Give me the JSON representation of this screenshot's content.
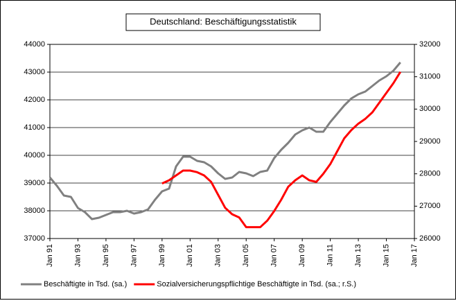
{
  "chart_data": {
    "type": "line",
    "title": "Deutschland: Beschäftigungsstatistik",
    "x": [
      1991,
      1991.5,
      1992,
      1992.5,
      1993,
      1993.5,
      1994,
      1994.5,
      1995,
      1995.5,
      1996,
      1996.5,
      1997,
      1997.5,
      1998,
      1998.5,
      1999,
      1999.5,
      2000,
      2000.5,
      2001,
      2001.5,
      2002,
      2002.5,
      2003,
      2003.5,
      2004,
      2004.5,
      2005,
      2005.5,
      2006,
      2006.5,
      2007,
      2007.5,
      2008,
      2008.5,
      2009,
      2009.5,
      2010,
      2010.5,
      2011,
      2011.5,
      2012,
      2012.5,
      2013,
      2013.5,
      2014,
      2014.5,
      2015,
      2015.5,
      2016
    ],
    "series": [
      {
        "name": "Beschäftigte in Tsd. (sa.)",
        "color": "#808080",
        "values": [
          39200,
          38900,
          38550,
          38500,
          38100,
          37950,
          37700,
          37750,
          37850,
          37950,
          37950,
          38000,
          37900,
          37950,
          38050,
          38400,
          38700,
          38800,
          39600,
          39950,
          39950,
          39800,
          39750,
          39600,
          39350,
          39150,
          39200,
          39400,
          39350,
          39250,
          39400,
          39450,
          39900,
          40200,
          40450,
          40750,
          40900,
          41000,
          40850,
          40850,
          41200,
          41500,
          41800,
          42050,
          42200,
          42300,
          42500,
          42700,
          42850,
          43050,
          43350
        ]
      },
      {
        "name": "Sozialversicherungspflichtige Beschäftigte in Tsd. (sa.; r.S.)",
        "color": "#ff0000",
        "axis": "y2",
        "values": [
          null,
          null,
          null,
          null,
          null,
          null,
          null,
          null,
          null,
          null,
          null,
          null,
          null,
          null,
          null,
          null,
          27700,
          27800,
          27950,
          28100,
          28100,
          28050,
          27950,
          27750,
          27350,
          26950,
          26750,
          26650,
          26350,
          26350,
          26350,
          26550,
          26850,
          27200,
          27600,
          27800,
          27950,
          27800,
          27750,
          28000,
          28300,
          28700,
          29100,
          29350,
          29550,
          29700,
          29900,
          30200,
          30500,
          30800,
          31150
        ]
      }
    ],
    "xlim": [
      1991,
      2017
    ],
    "xticks": [
      {
        "value": 1991,
        "label": "Jan 91"
      },
      {
        "value": 1993,
        "label": "Jan 93"
      },
      {
        "value": 1995,
        "label": "Jan 95"
      },
      {
        "value": 1997,
        "label": "Jan 97"
      },
      {
        "value": 1999,
        "label": "Jan 99"
      },
      {
        "value": 2001,
        "label": "Jan 01"
      },
      {
        "value": 2003,
        "label": "Jan 03"
      },
      {
        "value": 2005,
        "label": "Jan 05"
      },
      {
        "value": 2007,
        "label": "Jan 07"
      },
      {
        "value": 2009,
        "label": "Jan 09"
      },
      {
        "value": 2011,
        "label": "Jan 11"
      },
      {
        "value": 2013,
        "label": "Jan 13"
      },
      {
        "value": 2015,
        "label": "Jan 15"
      },
      {
        "value": 2017,
        "label": "Jan 17"
      }
    ],
    "ylim": [
      37000,
      44000
    ],
    "yticks": [
      37000,
      38000,
      39000,
      40000,
      41000,
      42000,
      43000,
      44000
    ],
    "y2lim": [
      26000,
      32000
    ],
    "y2ticks": [
      26000,
      27000,
      28000,
      29000,
      30000,
      31000,
      32000
    ],
    "grid": true,
    "legend": "bottom"
  }
}
